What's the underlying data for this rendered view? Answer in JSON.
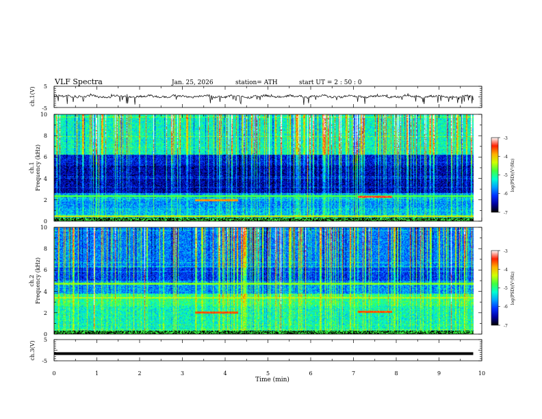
{
  "header": {
    "title": "VLF  Spectra",
    "date": "Jan. 25, 2026",
    "station": "station= ATH",
    "start": "start  UT  =   2  : 50 : 0"
  },
  "colors": {
    "waveform": "#000000",
    "colormap": [
      "#000000",
      "#0000a0",
      "#0030ff",
      "#00a0ff",
      "#00ffd0",
      "#40ff40",
      "#d0ff00",
      "#ffb000",
      "#ff2000",
      "#ffffff"
    ]
  },
  "chart_data": {
    "type": "heatmap",
    "xlabel": "Time  (min)",
    "xlim": [
      0,
      10
    ],
    "xticks": [
      "0",
      "1",
      "2",
      "3",
      "4",
      "5",
      "6",
      "7",
      "8",
      "9",
      "10"
    ],
    "data_end_min": 9.8,
    "panels": {
      "ch1_wave": {
        "ylabel": "ch.1(V)",
        "ylim": [
          -5,
          5
        ],
        "yticks": [
          "5",
          "-5"
        ],
        "baseline_v": 0.2
      },
      "ch1_spec": {
        "ylabel_channel": "ch.1",
        "ylabel": "Frequency  (kHz)",
        "ylim": [
          0,
          10
        ],
        "yticks": [
          "10",
          "8",
          "6",
          "4",
          "2",
          "0"
        ],
        "colorbar": {
          "label": "log(PSD)(V²/Hz)",
          "range": [
            -7,
            -3
          ],
          "ticks": [
            "-3",
            "-4",
            "-5",
            "-6",
            "-7"
          ]
        },
        "bands_khz": [
          {
            "f": 1.95,
            "level": -3.8,
            "t": [
              3.3,
              4.3
            ]
          },
          {
            "f": 2.25,
            "level": -3.4,
            "t": [
              7.1,
              7.9
            ]
          },
          {
            "f": 2.35,
            "level": -4.8,
            "t": [
              0,
              9.8
            ]
          },
          {
            "f": 0.45,
            "level": -4.2,
            "t": [
              0,
              9.8
            ]
          }
        ]
      },
      "ch2_spec": {
        "ylabel_channel": "ch.2",
        "ylabel": "Frequency  (kHz)",
        "ylim": [
          0,
          10
        ],
        "yticks": [
          "10",
          "8",
          "6",
          "4",
          "2",
          "0"
        ],
        "colorbar": {
          "label": "log(PSD)(V²/Hz)",
          "range": [
            -7,
            -3
          ],
          "ticks": [
            "-3",
            "-4",
            "-5",
            "-6",
            "-7"
          ]
        },
        "bands_khz": [
          {
            "f": 2.0,
            "level": -3.6,
            "t": [
              3.3,
              4.3
            ]
          },
          {
            "f": 2.1,
            "level": -3.6,
            "t": [
              7.1,
              7.9
            ]
          },
          {
            "f": 3.4,
            "level": -4.4,
            "t": [
              0,
              9.8
            ]
          },
          {
            "f": 4.7,
            "level": -4.6,
            "t": [
              0,
              9.8
            ]
          }
        ]
      },
      "ch3_wave": {
        "ylabel": "ch.3(V)",
        "ylim": [
          -5,
          5
        ],
        "yticks": [
          "5",
          "-5"
        ],
        "level_v": -1.6
      }
    }
  }
}
